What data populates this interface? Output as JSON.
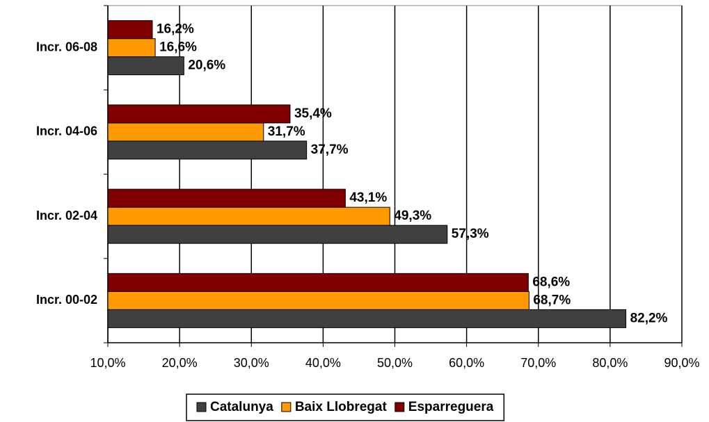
{
  "chart_data": {
    "type": "barh",
    "categories": [
      "Incr. 06-08",
      "Incr. 04-06",
      "Incr. 02-04",
      "Incr. 00-02"
    ],
    "series": [
      {
        "name": "Catalunya",
        "color": "#404040",
        "values": [
          20.6,
          37.7,
          57.3,
          82.2
        ],
        "value_labels": [
          "20,6%",
          "37,7%",
          "57,3%",
          "82,2%"
        ]
      },
      {
        "name": "Baix Llobregat",
        "color": "#ff9900",
        "values": [
          16.6,
          31.7,
          49.3,
          68.7
        ],
        "value_labels": [
          "16,6%",
          "31,7%",
          "49,3%",
          "68,7%"
        ]
      },
      {
        "name": "Esparreguera",
        "color": "#800000",
        "values": [
          16.2,
          35.4,
          43.1,
          68.6
        ],
        "value_labels": [
          "16,2%",
          "35,4%",
          "43,1%",
          "68,6%"
        ]
      }
    ],
    "xlim": [
      10,
      90
    ],
    "xticks": [
      {
        "value": 10,
        "label": "10,0%"
      },
      {
        "value": 20,
        "label": "20,0%"
      },
      {
        "value": 30,
        "label": "30,0%"
      },
      {
        "value": 40,
        "label": "40,0%"
      },
      {
        "value": 50,
        "label": "50,0%"
      },
      {
        "value": 60,
        "label": "60,0%"
      },
      {
        "value": 70,
        "label": "70,0%"
      },
      {
        "value": 80,
        "label": "80,0%"
      },
      {
        "value": 90,
        "label": "90,0%"
      }
    ],
    "grid": true,
    "legend": "bottom"
  }
}
